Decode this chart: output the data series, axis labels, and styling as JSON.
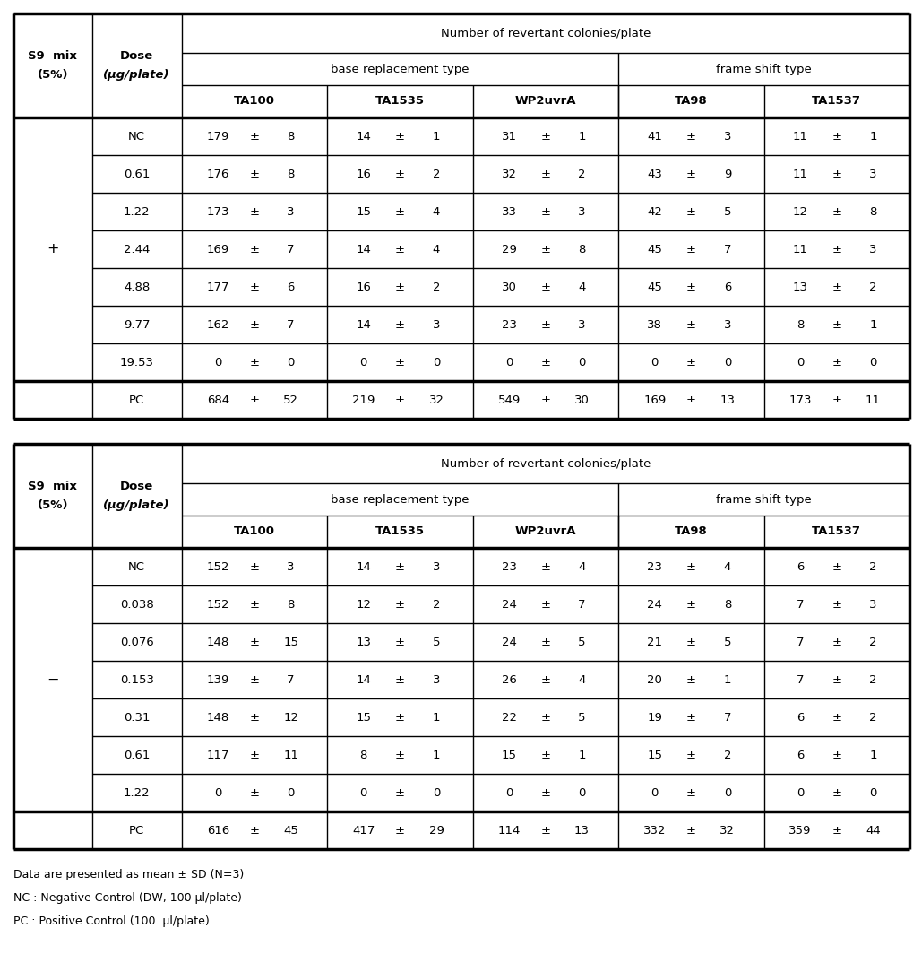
{
  "table1": {
    "s9mix": "+",
    "header_row1": "Number of revertant colonies/plate",
    "header_row2_left": "base replacement type",
    "header_row2_right": "frame shift type",
    "strains": [
      "TA100",
      "TA1535",
      "WP2uvrA",
      "TA98",
      "TA1537"
    ],
    "doses": [
      "NC",
      "0.61",
      "1.22",
      "2.44",
      "4.88",
      "9.77",
      "19.53",
      "PC"
    ],
    "data": [
      [
        [
          "179",
          "8"
        ],
        [
          "14",
          "1"
        ],
        [
          "31",
          "1"
        ],
        [
          "41",
          "3"
        ],
        [
          "11",
          "1"
        ]
      ],
      [
        [
          "176",
          "8"
        ],
        [
          "16",
          "2"
        ],
        [
          "32",
          "2"
        ],
        [
          "43",
          "9"
        ],
        [
          "11",
          "3"
        ]
      ],
      [
        [
          "173",
          "3"
        ],
        [
          "15",
          "4"
        ],
        [
          "33",
          "3"
        ],
        [
          "42",
          "5"
        ],
        [
          "12",
          "8"
        ]
      ],
      [
        [
          "169",
          "7"
        ],
        [
          "14",
          "4"
        ],
        [
          "29",
          "8"
        ],
        [
          "45",
          "7"
        ],
        [
          "11",
          "3"
        ]
      ],
      [
        [
          "177",
          "6"
        ],
        [
          "16",
          "2"
        ],
        [
          "30",
          "4"
        ],
        [
          "45",
          "6"
        ],
        [
          "13",
          "2"
        ]
      ],
      [
        [
          "162",
          "7"
        ],
        [
          "14",
          "3"
        ],
        [
          "23",
          "3"
        ],
        [
          "38",
          "3"
        ],
        [
          "8",
          "1"
        ]
      ],
      [
        [
          "0",
          "0"
        ],
        [
          "0",
          "0"
        ],
        [
          "0",
          "0"
        ],
        [
          "0",
          "0"
        ],
        [
          "0",
          "0"
        ]
      ],
      [
        [
          "684",
          "52"
        ],
        [
          "219",
          "32"
        ],
        [
          "549",
          "30"
        ],
        [
          "169",
          "13"
        ],
        [
          "173",
          "11"
        ]
      ]
    ]
  },
  "table2": {
    "s9mix": "−",
    "header_row1": "Number of revertant colonies/plate",
    "header_row2_left": "base replacement type",
    "header_row2_right": "frame shift type",
    "strains": [
      "TA100",
      "TA1535",
      "WP2uvrA",
      "TA98",
      "TA1537"
    ],
    "doses": [
      "NC",
      "0.038",
      "0.076",
      "0.153",
      "0.31",
      "0.61",
      "1.22",
      "PC"
    ],
    "data": [
      [
        [
          "152",
          "3"
        ],
        [
          "14",
          "3"
        ],
        [
          "23",
          "4"
        ],
        [
          "23",
          "4"
        ],
        [
          "6",
          "2"
        ]
      ],
      [
        [
          "152",
          "8"
        ],
        [
          "12",
          "2"
        ],
        [
          "24",
          "7"
        ],
        [
          "24",
          "8"
        ],
        [
          "7",
          "3"
        ]
      ],
      [
        [
          "148",
          "15"
        ],
        [
          "13",
          "5"
        ],
        [
          "24",
          "5"
        ],
        [
          "21",
          "5"
        ],
        [
          "7",
          "2"
        ]
      ],
      [
        [
          "139",
          "7"
        ],
        [
          "14",
          "3"
        ],
        [
          "26",
          "4"
        ],
        [
          "20",
          "1"
        ],
        [
          "7",
          "2"
        ]
      ],
      [
        [
          "148",
          "12"
        ],
        [
          "15",
          "1"
        ],
        [
          "22",
          "5"
        ],
        [
          "19",
          "7"
        ],
        [
          "6",
          "2"
        ]
      ],
      [
        [
          "117",
          "11"
        ],
        [
          "8",
          "1"
        ],
        [
          "15",
          "1"
        ],
        [
          "15",
          "2"
        ],
        [
          "6",
          "1"
        ]
      ],
      [
        [
          "0",
          "0"
        ],
        [
          "0",
          "0"
        ],
        [
          "0",
          "0"
        ],
        [
          "0",
          "0"
        ],
        [
          "0",
          "0"
        ]
      ],
      [
        [
          "616",
          "45"
        ],
        [
          "417",
          "29"
        ],
        [
          "114",
          "13"
        ],
        [
          "332",
          "32"
        ],
        [
          "359",
          "44"
        ]
      ]
    ]
  },
  "footnotes": [
    "Data are presented as mean ± SD (N=3)",
    "NC : Negative Control (DW, 100 μl/plate)",
    "PC : Positive Control (100  μl/plate)"
  ],
  "bg_color": "#ffffff",
  "text_color": "#000000",
  "font_size": 9.5,
  "strain_font_size": 9.5,
  "header_font_size": 9.5,
  "footnote_font_size": 9.0
}
